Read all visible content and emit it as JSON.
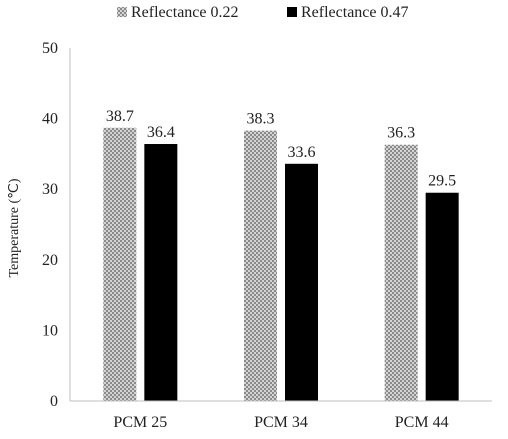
{
  "chart_data": {
    "type": "bar",
    "categories": [
      "PCM 25",
      "PCM 34",
      "PCM 44"
    ],
    "series": [
      {
        "name": "Reflectance 0.22",
        "values": [
          38.7,
          38.3,
          36.3
        ],
        "fill": "checker-gray"
      },
      {
        "name": "Reflectance 0.47",
        "values": [
          36.4,
          33.6,
          29.5
        ],
        "fill": "#000000"
      }
    ],
    "xlabel": "",
    "ylabel": "Temperature (℃)",
    "ylim": [
      0,
      50
    ],
    "yticks": [
      0,
      10,
      20,
      30,
      40,
      50
    ],
    "grid": false,
    "legend_position": "top",
    "colors": {
      "series_dark": "#000000",
      "checker_light": "#d9d9d9",
      "checker_dark": "#8a8a8a",
      "axis": "#bfbfbf"
    }
  }
}
